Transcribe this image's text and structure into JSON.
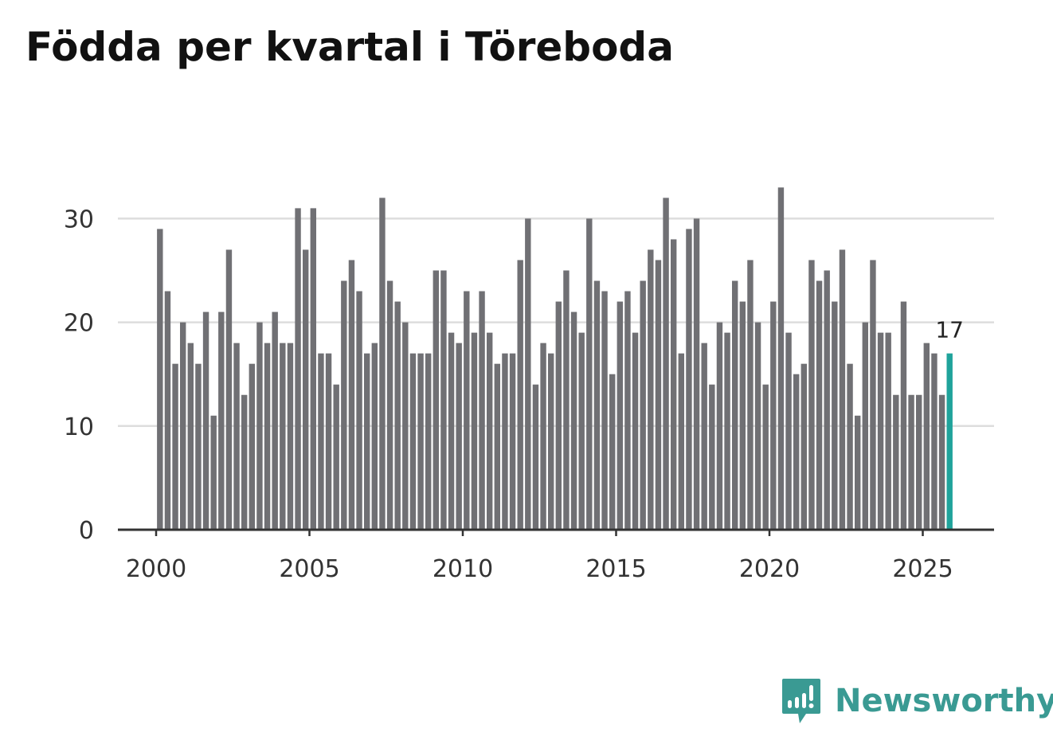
{
  "title": "Födda per kvartal i Töreboda",
  "brand": {
    "name": "Newsworthy",
    "icon": "newsworthy-logo-icon",
    "color": "#3a9a93"
  },
  "colors": {
    "bar": "#707074",
    "highlight": "#1fa39b",
    "grid": "#dddddd",
    "axis": "#333333"
  },
  "chart_data": {
    "type": "bar",
    "title": "Födda per kvartal i Töreboda",
    "xlabel": "",
    "ylabel": "",
    "ylim": [
      0,
      33
    ],
    "yticks": [
      0,
      10,
      20,
      30
    ],
    "xticks": [
      "2000",
      "2005",
      "2010",
      "2015",
      "2020",
      "2025"
    ],
    "start_year": 2000,
    "start_quarter": 1,
    "values": [
      29,
      23,
      16,
      20,
      18,
      16,
      21,
      11,
      21,
      27,
      18,
      13,
      16,
      20,
      18,
      21,
      18,
      18,
      31,
      27,
      31,
      17,
      17,
      14,
      24,
      26,
      23,
      17,
      18,
      32,
      24,
      22,
      20,
      17,
      17,
      17,
      25,
      25,
      19,
      18,
      23,
      19,
      23,
      19,
      16,
      17,
      17,
      26,
      30,
      14,
      18,
      17,
      22,
      25,
      21,
      19,
      30,
      24,
      23,
      15,
      22,
      23,
      19,
      24,
      27,
      26,
      32,
      28,
      17,
      29,
      30,
      18,
      14,
      20,
      19,
      24,
      22,
      26,
      20,
      14,
      22,
      33,
      19,
      15,
      16,
      26,
      24,
      25,
      22,
      27,
      16,
      11,
      20,
      26,
      19,
      19,
      13,
      22,
      13,
      13,
      18,
      17,
      13,
      17
    ],
    "highlight_last": true,
    "last_label": "17"
  }
}
